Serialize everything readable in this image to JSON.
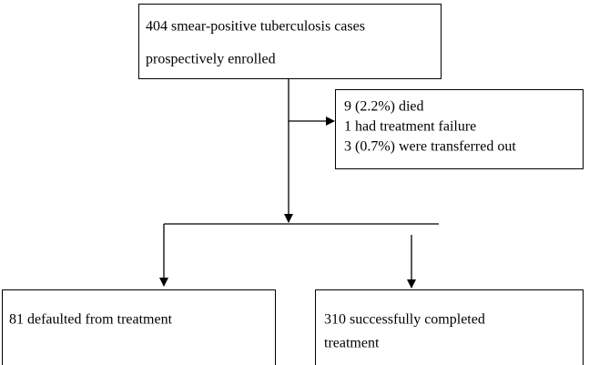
{
  "nodes": [
    {
      "lines": [
        "404 smear-positive tuberculosis cases",
        "prospectively enrolled"
      ]
    },
    {
      "lines": [
        "9 (2.2%) died",
        "1 had treatment failure",
        "3 (0.7%) were transferred out"
      ]
    },
    {
      "lines": [
        "81 defaulted from treatment"
      ]
    },
    {
      "lines": [
        "310 successfully completed",
        "treatment"
      ]
    }
  ]
}
